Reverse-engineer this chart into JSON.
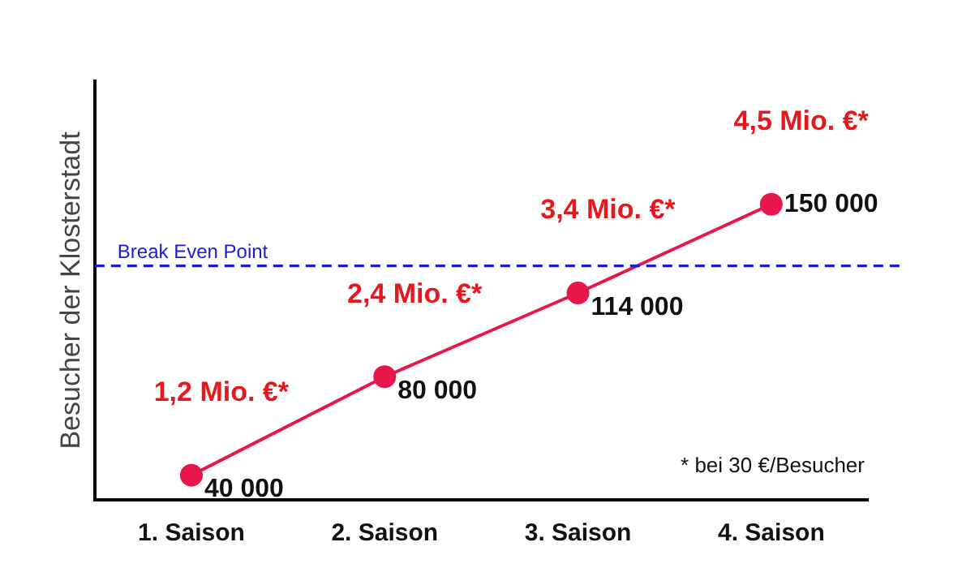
{
  "chart_data": {
    "type": "line",
    "ylabel": "Besucher der Klosterstadt",
    "categories": [
      "1. Saison",
      "2. Saison",
      "3. Saison",
      "4. Saison"
    ],
    "series": [
      {
        "color": "#e8174a",
        "values": [
          40000,
          80000,
          114000,
          150000
        ],
        "value_labels": [
          "40 000",
          "80 000",
          "114 000",
          "150 000"
        ]
      }
    ],
    "ylim": [
      30000,
      200000
    ],
    "tick_labels": "x",
    "grid": false,
    "legend": false,
    "marker": "circle",
    "line_style": "solid",
    "ref_lines": [
      {
        "axis": "y",
        "value": 125000,
        "label": "Break Even Point",
        "color": "#1a1ad6",
        "line_style": "dashed"
      }
    ],
    "annotations": [
      {
        "text": "1,2 Mio. €*",
        "x": "1. Saison",
        "y": 40000
      },
      {
        "text": "2,4 Mio. €*",
        "x": "2. Saison",
        "y": 80000
      },
      {
        "text": "3,4 Mio. €*",
        "x": "3. Saison",
        "y": 114000
      },
      {
        "text": "4,5 Mio. €*",
        "x": "4. Saison",
        "y": 150000
      },
      "* bei 30 €/Besucher"
    ]
  }
}
